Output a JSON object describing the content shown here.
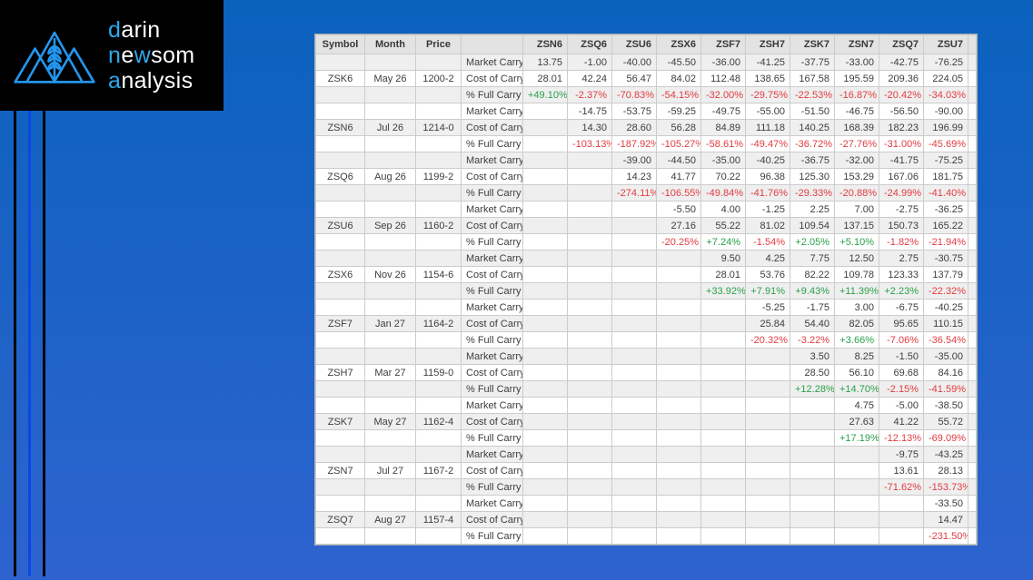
{
  "brand": {
    "highlight_color": "#2da9ea",
    "icon": "mountains-wheat",
    "lines": [
      [
        {
          "text": "d",
          "hl": true
        },
        {
          "text": "arin",
          "hl": false
        }
      ],
      [
        {
          "text": "n",
          "hl": true
        },
        {
          "text": "e",
          "hl": false
        },
        {
          "text": "w",
          "hl": true
        },
        {
          "text": "som",
          "hl": false
        }
      ],
      [
        {
          "text": "a",
          "hl": true
        },
        {
          "text": "nalysis",
          "hl": false
        }
      ]
    ]
  },
  "colors": {
    "positive": "#2aa14a",
    "negative": "#e23b41",
    "background_top": "#0a62bd",
    "background_bottom": "#2e63cf",
    "accent_line": "#0a46e8"
  },
  "table": {
    "columns": [
      "Symbol",
      "Month",
      "Price",
      "",
      "ZSN6",
      "ZSQ6",
      "ZSU6",
      "ZSX6",
      "ZSF7",
      "ZSH7",
      "ZSK7",
      "ZSN7",
      "ZSQ7",
      "ZSU7"
    ],
    "row_labels": {
      "market": "Market Carry",
      "cost": "Cost of Carry",
      "pct": "% Full Carry"
    },
    "groups": [
      {
        "symbol": "ZSK6",
        "month": "May 26",
        "price": "1200-2",
        "market_carry": [
          "13.75",
          "-1.00",
          "-40.00",
          "-45.50",
          "-36.00",
          "-41.25",
          "-37.75",
          "-33.00",
          "-42.75",
          "-76.25"
        ],
        "cost_of_carry": [
          "28.01",
          "42.24",
          "56.47",
          "84.02",
          "112.48",
          "138.65",
          "167.58",
          "195.59",
          "209.36",
          "224.05"
        ],
        "pct_full_carry": [
          "+49.10%",
          "-2.37%",
          "-70.83%",
          "-54.15%",
          "-32.00%",
          "-29.75%",
          "-22.53%",
          "-16.87%",
          "-20.42%",
          "-34.03%"
        ]
      },
      {
        "symbol": "ZSN6",
        "month": "Jul 26",
        "price": "1214-0",
        "market_carry": [
          "",
          "-14.75",
          "-53.75",
          "-59.25",
          "-49.75",
          "-55.00",
          "-51.50",
          "-46.75",
          "-56.50",
          "-90.00"
        ],
        "cost_of_carry": [
          "",
          "14.30",
          "28.60",
          "56.28",
          "84.89",
          "111.18",
          "140.25",
          "168.39",
          "182.23",
          "196.99"
        ],
        "pct_full_carry": [
          "",
          "-103.13%",
          "-187.92%",
          "-105.27%",
          "-58.61%",
          "-49.47%",
          "-36.72%",
          "-27.76%",
          "-31.00%",
          "-45.69%"
        ]
      },
      {
        "symbol": "ZSQ6",
        "month": "Aug 26",
        "price": "1199-2",
        "market_carry": [
          "",
          "",
          "-39.00",
          "-44.50",
          "-35.00",
          "-40.25",
          "-36.75",
          "-32.00",
          "-41.75",
          "-75.25"
        ],
        "cost_of_carry": [
          "",
          "",
          "14.23",
          "41.77",
          "70.22",
          "96.38",
          "125.30",
          "153.29",
          "167.06",
          "181.75"
        ],
        "pct_full_carry": [
          "",
          "",
          "-274.11%",
          "-106.55%",
          "-49.84%",
          "-41.76%",
          "-29.33%",
          "-20.88%",
          "-24.99%",
          "-41.40%"
        ]
      },
      {
        "symbol": "ZSU6",
        "month": "Sep 26",
        "price": "1160-2",
        "market_carry": [
          "",
          "",
          "",
          "-5.50",
          "4.00",
          "-1.25",
          "2.25",
          "7.00",
          "-2.75",
          "-36.25"
        ],
        "cost_of_carry": [
          "",
          "",
          "",
          "27.16",
          "55.22",
          "81.02",
          "109.54",
          "137.15",
          "150.73",
          "165.22"
        ],
        "pct_full_carry": [
          "",
          "",
          "",
          "-20.25%",
          "+7.24%",
          "-1.54%",
          "+2.05%",
          "+5.10%",
          "-1.82%",
          "-21.94%"
        ]
      },
      {
        "symbol": "ZSX6",
        "month": "Nov 26",
        "price": "1154-6",
        "market_carry": [
          "",
          "",
          "",
          "",
          "9.50",
          "4.25",
          "7.75",
          "12.50",
          "2.75",
          "-30.75"
        ],
        "cost_of_carry": [
          "",
          "",
          "",
          "",
          "28.01",
          "53.76",
          "82.22",
          "109.78",
          "123.33",
          "137.79"
        ],
        "pct_full_carry": [
          "",
          "",
          "",
          "",
          "+33.92%",
          "+7.91%",
          "+9.43%",
          "+11.39%",
          "+2.23%",
          "-22.32%"
        ]
      },
      {
        "symbol": "ZSF7",
        "month": "Jan 27",
        "price": "1164-2",
        "market_carry": [
          "",
          "",
          "",
          "",
          "",
          "-5.25",
          "-1.75",
          "3.00",
          "-6.75",
          "-40.25"
        ],
        "cost_of_carry": [
          "",
          "",
          "",
          "",
          "",
          "25.84",
          "54.40",
          "82.05",
          "95.65",
          "110.15"
        ],
        "pct_full_carry": [
          "",
          "",
          "",
          "",
          "",
          "-20.32%",
          "-3.22%",
          "+3.66%",
          "-7.06%",
          "-36.54%"
        ]
      },
      {
        "symbol": "ZSH7",
        "month": "Mar 27",
        "price": "1159-0",
        "market_carry": [
          "",
          "",
          "",
          "",
          "",
          "",
          "3.50",
          "8.25",
          "-1.50",
          "-35.00"
        ],
        "cost_of_carry": [
          "",
          "",
          "",
          "",
          "",
          "",
          "28.50",
          "56.10",
          "69.68",
          "84.16"
        ],
        "pct_full_carry": [
          "",
          "",
          "",
          "",
          "",
          "",
          "+12.28%",
          "+14.70%",
          "-2.15%",
          "-41.59%"
        ]
      },
      {
        "symbol": "ZSK7",
        "month": "May 27",
        "price": "1162-4",
        "market_carry": [
          "",
          "",
          "",
          "",
          "",
          "",
          "",
          "4.75",
          "-5.00",
          "-38.50"
        ],
        "cost_of_carry": [
          "",
          "",
          "",
          "",
          "",
          "",
          "",
          "27.63",
          "41.22",
          "55.72"
        ],
        "pct_full_carry": [
          "",
          "",
          "",
          "",
          "",
          "",
          "",
          "+17.19%",
          "-12.13%",
          "-69.09%"
        ]
      },
      {
        "symbol": "ZSN7",
        "month": "Jul 27",
        "price": "1167-2",
        "market_carry": [
          "",
          "",
          "",
          "",
          "",
          "",
          "",
          "",
          "-9.75",
          "-43.25"
        ],
        "cost_of_carry": [
          "",
          "",
          "",
          "",
          "",
          "",
          "",
          "",
          "13.61",
          "28.13"
        ],
        "pct_full_carry": [
          "",
          "",
          "",
          "",
          "",
          "",
          "",
          "",
          "-71.62%",
          "-153.73%"
        ]
      },
      {
        "symbol": "ZSQ7",
        "month": "Aug 27",
        "price": "1157-4",
        "market_carry": [
          "",
          "",
          "",
          "",
          "",
          "",
          "",
          "",
          "",
          "-33.50"
        ],
        "cost_of_carry": [
          "",
          "",
          "",
          "",
          "",
          "",
          "",
          "",
          "",
          "14.47"
        ],
        "pct_full_carry": [
          "",
          "",
          "",
          "",
          "",
          "",
          "",
          "",
          "",
          "-231.50%"
        ]
      }
    ]
  }
}
